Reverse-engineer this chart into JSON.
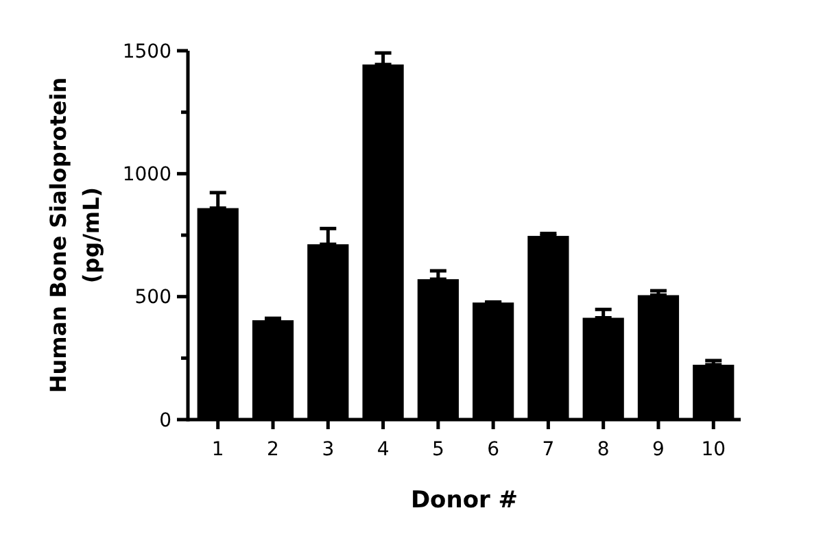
{
  "chart_data": {
    "type": "bar",
    "xlabel": "Donor #",
    "ylabel": "Human Bone Sialoprotein\n(pg/mL)",
    "categories": [
      "1",
      "2",
      "3",
      "4",
      "5",
      "6",
      "7",
      "8",
      "9",
      "10"
    ],
    "values": [
      860,
      404,
      713,
      1444,
      571,
      476,
      747,
      414,
      506,
      223
    ],
    "errors": [
      [
        860,
        923
      ],
      [
        404,
        412
      ],
      [
        713,
        777
      ],
      [
        1444,
        1491
      ],
      [
        571,
        605
      ],
      [
        476,
        478
      ],
      [
        747,
        757
      ],
      [
        414,
        448
      ],
      [
        506,
        524
      ],
      [
        223,
        240
      ]
    ],
    "color": "#000000",
    "ylim": [
      0,
      1500
    ],
    "yticks": [
      0,
      {
        "value": 250,
        "label": null
      },
      500,
      {
        "value": 750,
        "label": null
      },
      1000,
      {
        "value": 1250,
        "label": null
      },
      1500
    ],
    "grid": false
  }
}
